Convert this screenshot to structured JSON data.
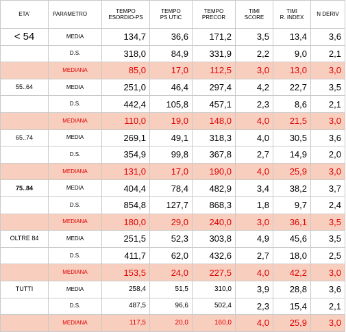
{
  "headers": {
    "eta": "ETA'",
    "parametro": "PARAMETRO",
    "tempo_esordio_l1": "TEMPO",
    "tempo_esordio_l2": "ESORDIO-PS",
    "tempo_psutic_l1": "TEMPO",
    "tempo_psutic_l2": "PS UTIC",
    "tempo_precor_l1": "TEMPO",
    "tempo_precor_l2": "PRECOR",
    "timi_score_l1": "TIMI",
    "timi_score_l2": "SCORE",
    "timi_rindex_l1": "TIMI",
    "timi_rindex_l2": "R. INDEX",
    "nderiv": "N DERIV"
  },
  "rows": [
    {
      "eta": "< 54",
      "param": "MEDIA",
      "v": [
        "134,7",
        "36,6",
        "171,2",
        "3,5",
        "13,4",
        "3,6"
      ]
    },
    {
      "eta": "",
      "param": "D.S.",
      "v": [
        "318,0",
        "84,9",
        "331,9",
        "2,2",
        "9,0",
        "2,1"
      ]
    },
    {
      "eta": "",
      "param": "MEDIANA",
      "v": [
        "85,0",
        "17,0",
        "112,5",
        "3,0",
        "13,0",
        "3,0"
      ]
    },
    {
      "eta": "55..64",
      "param": "MEDIA",
      "v": [
        "251,0",
        "46,4",
        "297,4",
        "4,2",
        "22,7",
        "3,5"
      ]
    },
    {
      "eta": "",
      "param": "D.S.",
      "v": [
        "442,4",
        "105,8",
        "457,1",
        "2,3",
        "8,6",
        "2,1"
      ]
    },
    {
      "eta": "",
      "param": "MEDIANA",
      "v": [
        "110,0",
        "19,0",
        "148,0",
        "4,0",
        "21,5",
        "3,0"
      ]
    },
    {
      "eta": "65..74",
      "param": "MEDIA",
      "v": [
        "269,1",
        "49,1",
        "318,3",
        "4,0",
        "30,5",
        "3,6"
      ]
    },
    {
      "eta": "",
      "param": "D.S.",
      "v": [
        "354,9",
        "99,8",
        "367,8",
        "2,7",
        "14,9",
        "2,0"
      ]
    },
    {
      "eta": "",
      "param": "MEDIANA",
      "v": [
        "131,0",
        "17,0",
        "190,0",
        "4,0",
        "25,9",
        "3,0"
      ]
    },
    {
      "eta": "75..84",
      "param": "MEDIA",
      "v": [
        "404,4",
        "78,4",
        "482,9",
        "3,4",
        "38,2",
        "3,7"
      ]
    },
    {
      "eta": "",
      "param": "D.S.",
      "v": [
        "854,8",
        "127,7",
        "868,3",
        "1,8",
        "9,7",
        "2,4"
      ]
    },
    {
      "eta": "",
      "param": "MEDIANA",
      "v": [
        "180,0",
        "29,0",
        "240,0",
        "3,0",
        "36,1",
        "3,5"
      ]
    },
    {
      "eta": "OLTRE 84",
      "param": "MEDIA",
      "v": [
        "251,5",
        "52,3",
        "303,8",
        "4,9",
        "45,6",
        "3,5"
      ]
    },
    {
      "eta": "",
      "param": "D.S.",
      "v": [
        "411,7",
        "62,0",
        "432,6",
        "2,7",
        "18,0",
        "2,5"
      ]
    },
    {
      "eta": "",
      "param": "MEDIANA",
      "v": [
        "153,5",
        "24,0",
        "227,5",
        "4,0",
        "42,2",
        "3,0"
      ]
    },
    {
      "eta": "TUTTI",
      "param": "MEDIA",
      "v": [
        "258,4",
        "51,5",
        "310,0",
        "3,9",
        "28,8",
        "3,6"
      ]
    },
    {
      "eta": "",
      "param": "D.S.",
      "v": [
        "487,5",
        "96,6",
        "502,4",
        "2,3",
        "15,4",
        "2,1"
      ]
    },
    {
      "eta": "",
      "param": "MEDIANA",
      "v": [
        "117,5",
        "20,0",
        "160,0",
        "4,0",
        "25,9",
        "3,0"
      ]
    }
  ]
}
